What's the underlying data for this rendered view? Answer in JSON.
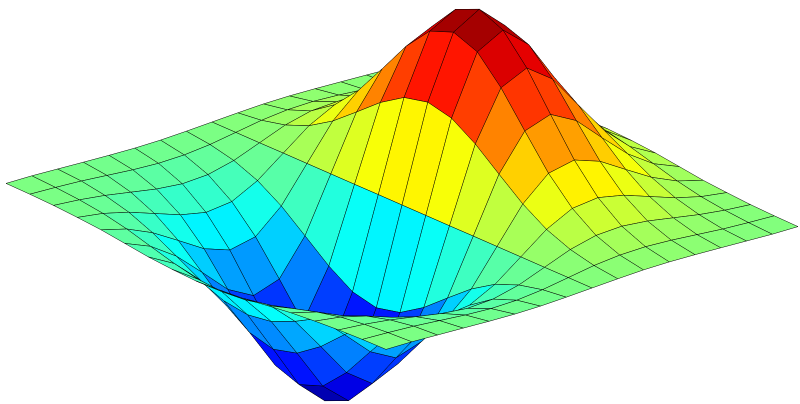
{
  "chart_data": {
    "type": "surface",
    "colormap": "jet",
    "edgecolor": "#000000",
    "x": [
      -2,
      -1.75,
      -1.5,
      -1.25,
      -1,
      -0.75,
      -0.5,
      -0.25,
      0,
      0.25,
      0.5,
      0.75,
      1,
      1.25,
      1.5,
      1.75,
      2
    ],
    "y": [
      -2,
      -1.75,
      -1.5,
      -1.25,
      -1,
      -0.75,
      -0.5,
      -0.25,
      0,
      0.25,
      0.5,
      0.75,
      1,
      1.25,
      1.5,
      1.75,
      2
    ],
    "z": [
      [
        -0.001,
        -0.001,
        -0.003,
        -0.005,
        -0.007,
        -0.008,
        -0.007,
        -0.004,
        0,
        0.004,
        0.007,
        0.008,
        0.007,
        0.005,
        0.003,
        0.001,
        0.001
      ],
      [
        -0.002,
        -0.004,
        -0.007,
        -0.012,
        -0.017,
        -0.02,
        -0.018,
        -0.011,
        0,
        0.011,
        0.018,
        0.02,
        0.017,
        0.012,
        0.007,
        0.004,
        0.002
      ],
      [
        -0.004,
        -0.009,
        -0.017,
        -0.028,
        -0.039,
        -0.045,
        -0.041,
        -0.025,
        0,
        0.025,
        0.041,
        0.045,
        0.039,
        0.028,
        0.017,
        0.009,
        0.004
      ],
      [
        -0.008,
        -0.017,
        -0.033,
        -0.055,
        -0.077,
        -0.09,
        -0.082,
        -0.049,
        0,
        0.049,
        0.082,
        0.09,
        0.077,
        0.055,
        0.033,
        0.017,
        0.008
      ],
      [
        -0.013,
        -0.03,
        -0.058,
        -0.096,
        -0.135,
        -0.157,
        -0.143,
        -0.086,
        0,
        0.086,
        0.143,
        0.157,
        0.135,
        0.096,
        0.058,
        0.03,
        0.013
      ],
      [
        -0.021,
        -0.047,
        -0.09,
        -0.149,
        -0.21,
        -0.244,
        -0.222,
        -0.134,
        0,
        0.134,
        0.222,
        0.244,
        0.21,
        0.149,
        0.09,
        0.047,
        0.021
      ],
      [
        -0.029,
        -0.064,
        -0.123,
        -0.204,
        -0.287,
        -0.333,
        -0.303,
        -0.183,
        0,
        0.183,
        0.303,
        0.333,
        0.287,
        0.204,
        0.123,
        0.064,
        0.029
      ],
      [
        -0.034,
        -0.077,
        -0.149,
        -0.246,
        -0.346,
        -0.401,
        -0.366,
        -0.221,
        0,
        0.221,
        0.366,
        0.401,
        0.346,
        0.246,
        0.149,
        0.077,
        0.034
      ],
      [
        -0.037,
        -0.082,
        -0.158,
        -0.262,
        -0.368,
        -0.427,
        -0.389,
        -0.235,
        0,
        0.235,
        0.389,
        0.427,
        0.368,
        0.262,
        0.158,
        0.082,
        0.037
      ],
      [
        -0.034,
        -0.077,
        -0.149,
        -0.246,
        -0.346,
        -0.401,
        -0.366,
        -0.221,
        0,
        0.221,
        0.366,
        0.401,
        0.346,
        0.246,
        0.149,
        0.077,
        0.034
      ],
      [
        -0.029,
        -0.064,
        -0.123,
        -0.204,
        -0.287,
        -0.333,
        -0.303,
        -0.183,
        0,
        0.183,
        0.303,
        0.333,
        0.287,
        0.204,
        0.123,
        0.064,
        0.029
      ],
      [
        -0.021,
        -0.047,
        -0.09,
        -0.149,
        -0.21,
        -0.244,
        -0.222,
        -0.134,
        0,
        0.134,
        0.222,
        0.244,
        0.21,
        0.149,
        0.09,
        0.047,
        0.021
      ],
      [
        -0.013,
        -0.03,
        -0.058,
        -0.096,
        -0.135,
        -0.157,
        -0.143,
        -0.086,
        0,
        0.086,
        0.143,
        0.157,
        0.135,
        0.096,
        0.058,
        0.03,
        0.013
      ],
      [
        -0.008,
        -0.017,
        -0.033,
        -0.055,
        -0.077,
        -0.09,
        -0.082,
        -0.049,
        0,
        0.049,
        0.082,
        0.09,
        0.077,
        0.055,
        0.033,
        0.017,
        0.008
      ],
      [
        -0.004,
        -0.009,
        -0.017,
        -0.028,
        -0.039,
        -0.045,
        -0.041,
        -0.025,
        0,
        0.025,
        0.041,
        0.045,
        0.039,
        0.028,
        0.017,
        0.009,
        0.004
      ],
      [
        -0.002,
        -0.004,
        -0.007,
        -0.012,
        -0.017,
        -0.02,
        -0.018,
        -0.011,
        0,
        0.011,
        0.018,
        0.02,
        0.017,
        0.012,
        0.007,
        0.004,
        0.002
      ],
      [
        -0.001,
        -0.001,
        -0.003,
        -0.005,
        -0.007,
        -0.008,
        -0.007,
        -0.004,
        0,
        0.004,
        0.007,
        0.008,
        0.007,
        0.005,
        0.003,
        0.001,
        0.001
      ]
    ]
  }
}
